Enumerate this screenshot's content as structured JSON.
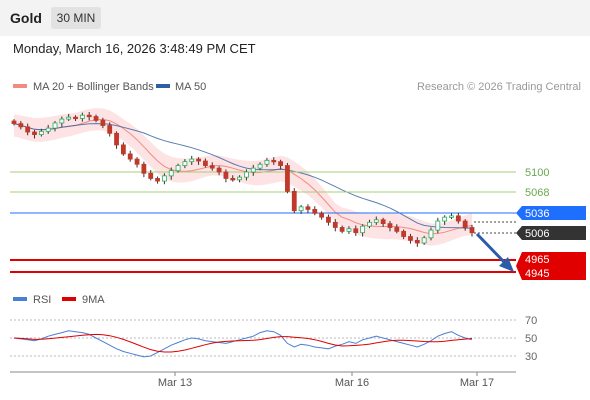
{
  "header": {
    "symbol": "Gold",
    "timeframe": "30 MIN",
    "datetime": "Monday, March 16, 2026 3:48:49 PM CET"
  },
  "legend": {
    "ma20_label": "MA 20 + Bollinger Bands",
    "ma50_label": "MA 50",
    "credit": "Research © 2026 Trading Central",
    "rsi_label": "RSI",
    "rsi_ma_label": "9MA"
  },
  "colors": {
    "ma20": "#f28b82",
    "ma50": "#2e5fa3",
    "bands": "#fde0e0",
    "resistance": "#a6cf7a",
    "pivot": "#1f6fff",
    "support": "#e00000",
    "candle": "#c0392b",
    "arrow": "#2a5caa"
  },
  "levels": {
    "resistance_2": "5100",
    "resistance_1": "5068",
    "pivot": "5036",
    "last": "5006",
    "support_1": "4965",
    "support_2": "4945"
  },
  "rsi_ticks": [
    "70",
    "50",
    "30"
  ],
  "x_ticks": [
    "Mar 13",
    "Mar 16",
    "Mar 17"
  ],
  "chart_data": {
    "type": "candlestick",
    "price_closes": [
      5175,
      5170,
      5162,
      5158,
      5163,
      5168,
      5176,
      5182,
      5185,
      5183,
      5188,
      5186,
      5180,
      5172,
      5160,
      5142,
      5128,
      5120,
      5112,
      5098,
      5090,
      5086,
      5094,
      5102,
      5110,
      5116,
      5120,
      5117,
      5110,
      5106,
      5100,
      5090,
      5088,
      5092,
      5100,
      5106,
      5112,
      5118,
      5116,
      5110,
      5070,
      5040,
      5046,
      5042,
      5036,
      5030,
      5022,
      5014,
      5008,
      5012,
      5006,
      5016,
      5022,
      5026,
      5020,
      5014,
      5008,
      5000,
      4994,
      4990,
      4998,
      5010,
      5024,
      5030,
      5032,
      5024,
      5014,
      5006
    ],
    "rsi": [
      50,
      49,
      48,
      47,
      49,
      52,
      54,
      56,
      58,
      57,
      56,
      54,
      50,
      46,
      42,
      38,
      35,
      33,
      31,
      29,
      30,
      34,
      38,
      42,
      45,
      48,
      50,
      49,
      47,
      46,
      45,
      44,
      46,
      48,
      50,
      52,
      56,
      58,
      57,
      53,
      44,
      40,
      43,
      42,
      40,
      39,
      38,
      41,
      43,
      46,
      44,
      48,
      50,
      52,
      50,
      48,
      46,
      44,
      42,
      40,
      43,
      47,
      52,
      55,
      57,
      53,
      50,
      48
    ],
    "rsi_range": [
      20,
      80
    ],
    "rsi_levels": [
      70,
      50,
      30
    ]
  }
}
